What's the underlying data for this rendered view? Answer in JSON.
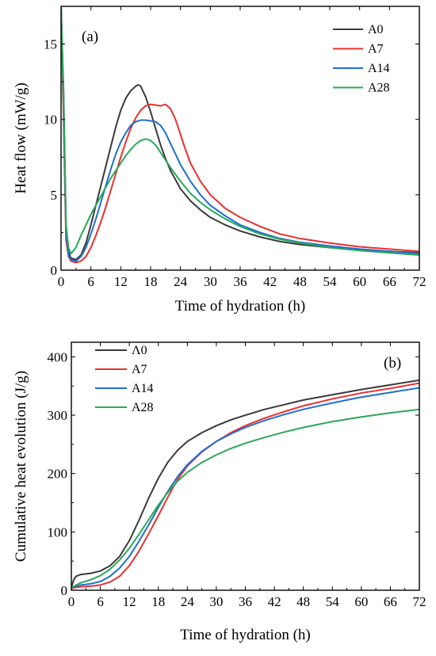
{
  "chart_data": [
    {
      "type": "line",
      "panel_label": "(a)",
      "xlabel": "Time of hydration (h)",
      "ylabel": "Heat flow (mW/g)",
      "xlim": [
        0,
        72
      ],
      "ylim": [
        0,
        17.5
      ],
      "xticks": [
        0,
        6,
        12,
        18,
        24,
        30,
        36,
        42,
        48,
        54,
        60,
        66,
        72
      ],
      "yticks": [
        0,
        5,
        10,
        15
      ],
      "legend_position": "top-right",
      "series": [
        {
          "name": "A0",
          "color": "#3a3a3a",
          "points": [
            [
              0,
              17.5
            ],
            [
              0.5,
              12
            ],
            [
              1,
              3
            ],
            [
              1.5,
              1.2
            ],
            [
              2,
              0.8
            ],
            [
              3,
              0.7
            ],
            [
              4,
              1.0
            ],
            [
              5,
              1.8
            ],
            [
              6,
              3.0
            ],
            [
              7,
              4.3
            ],
            [
              8,
              5.6
            ],
            [
              9,
              6.9
            ],
            [
              10,
              8.2
            ],
            [
              11,
              9.5
            ],
            [
              12,
              10.6
            ],
            [
              13,
              11.4
            ],
            [
              14,
              11.9
            ],
            [
              15,
              12.2
            ],
            [
              15.5,
              12.3
            ],
            [
              16,
              12.2
            ],
            [
              17,
              11.5
            ],
            [
              18,
              10.5
            ],
            [
              19,
              9.4
            ],
            [
              20,
              8.3
            ],
            [
              21,
              7.4
            ],
            [
              22,
              6.6
            ],
            [
              24,
              5.4
            ],
            [
              26,
              4.6
            ],
            [
              28,
              4.0
            ],
            [
              30,
              3.5
            ],
            [
              33,
              3.0
            ],
            [
              36,
              2.6
            ],
            [
              40,
              2.2
            ],
            [
              44,
              1.9
            ],
            [
              48,
              1.7
            ],
            [
              54,
              1.5
            ],
            [
              60,
              1.35
            ],
            [
              66,
              1.25
            ],
            [
              72,
              1.15
            ]
          ]
        },
        {
          "name": "A7",
          "color": "#e8312f",
          "points": [
            [
              0,
              17.5
            ],
            [
              0.5,
              10
            ],
            [
              1,
              2
            ],
            [
              1.5,
              0.9
            ],
            [
              2,
              0.6
            ],
            [
              3,
              0.5
            ],
            [
              4,
              0.6
            ],
            [
              5,
              0.9
            ],
            [
              6,
              1.5
            ],
            [
              7,
              2.3
            ],
            [
              8,
              3.2
            ],
            [
              9,
              4.2
            ],
            [
              10,
              5.3
            ],
            [
              11,
              6.4
            ],
            [
              12,
              7.5
            ],
            [
              13,
              8.5
            ],
            [
              14,
              9.4
            ],
            [
              15,
              10.1
            ],
            [
              16,
              10.6
            ],
            [
              17,
              10.9
            ],
            [
              18,
              11.0
            ],
            [
              19,
              10.95
            ],
            [
              20,
              10.9
            ],
            [
              21,
              11.0
            ],
            [
              22,
              10.7
            ],
            [
              23,
              10.0
            ],
            [
              24,
              9.0
            ],
            [
              25,
              8.0
            ],
            [
              26,
              7.1
            ],
            [
              28,
              5.9
            ],
            [
              30,
              5.0
            ],
            [
              33,
              4.1
            ],
            [
              36,
              3.5
            ],
            [
              40,
              2.9
            ],
            [
              44,
              2.4
            ],
            [
              48,
              2.1
            ],
            [
              54,
              1.8
            ],
            [
              60,
              1.55
            ],
            [
              66,
              1.4
            ],
            [
              72,
              1.25
            ]
          ]
        },
        {
          "name": "A14",
          "color": "#1f6fd1",
          "points": [
            [
              0,
              17.5
            ],
            [
              0.5,
              11
            ],
            [
              1,
              2.5
            ],
            [
              1.5,
              1.0
            ],
            [
              2,
              0.7
            ],
            [
              3,
              0.6
            ],
            [
              4,
              0.9
            ],
            [
              5,
              1.5
            ],
            [
              6,
              2.4
            ],
            [
              7,
              3.4
            ],
            [
              8,
              4.5
            ],
            [
              9,
              5.6
            ],
            [
              10,
              6.7
            ],
            [
              11,
              7.7
            ],
            [
              12,
              8.5
            ],
            [
              13,
              9.1
            ],
            [
              14,
              9.6
            ],
            [
              15,
              9.85
            ],
            [
              16,
              9.95
            ],
            [
              17,
              9.95
            ],
            [
              18,
              9.9
            ],
            [
              19,
              9.85
            ],
            [
              20,
              9.6
            ],
            [
              21,
              9.1
            ],
            [
              22,
              8.4
            ],
            [
              23,
              7.7
            ],
            [
              24,
              7.0
            ],
            [
              26,
              5.9
            ],
            [
              28,
              5.0
            ],
            [
              30,
              4.3
            ],
            [
              33,
              3.6
            ],
            [
              36,
              3.0
            ],
            [
              40,
              2.5
            ],
            [
              44,
              2.1
            ],
            [
              48,
              1.85
            ],
            [
              54,
              1.6
            ],
            [
              60,
              1.4
            ],
            [
              66,
              1.25
            ],
            [
              72,
              1.1
            ]
          ]
        },
        {
          "name": "A28",
          "color": "#2aa85a",
          "points": [
            [
              0,
              17.5
            ],
            [
              0.5,
              11.5
            ],
            [
              1,
              3
            ],
            [
              1.5,
              1.5
            ],
            [
              2,
              1.1
            ],
            [
              3,
              1.5
            ],
            [
              4,
              2.3
            ],
            [
              5,
              3.0
            ],
            [
              6,
              3.7
            ],
            [
              7,
              4.3
            ],
            [
              8,
              4.9
            ],
            [
              9,
              5.5
            ],
            [
              10,
              6.1
            ],
            [
              11,
              6.6
            ],
            [
              12,
              7.1
            ],
            [
              13,
              7.6
            ],
            [
              14,
              8.0
            ],
            [
              15,
              8.35
            ],
            [
              16,
              8.6
            ],
            [
              17,
              8.7
            ],
            [
              18,
              8.6
            ],
            [
              19,
              8.3
            ],
            [
              20,
              7.8
            ],
            [
              21,
              7.3
            ],
            [
              22,
              6.8
            ],
            [
              24,
              5.9
            ],
            [
              26,
              5.1
            ],
            [
              28,
              4.5
            ],
            [
              30,
              4.0
            ],
            [
              33,
              3.4
            ],
            [
              36,
              2.9
            ],
            [
              40,
              2.4
            ],
            [
              44,
              2.05
            ],
            [
              48,
              1.8
            ],
            [
              54,
              1.5
            ],
            [
              60,
              1.3
            ],
            [
              66,
              1.15
            ],
            [
              72,
              1.0
            ]
          ]
        }
      ]
    },
    {
      "type": "line",
      "panel_label": "(b)",
      "xlabel": "Time of hydration (h)",
      "ylabel": "Cumulative heat evolution (J/g)",
      "xlim": [
        0,
        72
      ],
      "ylim": [
        0,
        425
      ],
      "xticks": [
        0,
        6,
        12,
        18,
        24,
        30,
        36,
        42,
        48,
        54,
        60,
        66,
        72
      ],
      "yticks": [
        0,
        100,
        200,
        300,
        400
      ],
      "legend_position": "top-left",
      "series": [
        {
          "name": "Λ0",
          "color": "#3a3a3a",
          "points": [
            [
              0,
              5
            ],
            [
              0.5,
              18
            ],
            [
              1,
              24
            ],
            [
              2,
              27
            ],
            [
              4,
              29
            ],
            [
              6,
              33
            ],
            [
              8,
              42
            ],
            [
              10,
              58
            ],
            [
              12,
              85
            ],
            [
              14,
              120
            ],
            [
              16,
              158
            ],
            [
              18,
              192
            ],
            [
              20,
              220
            ],
            [
              22,
              240
            ],
            [
              24,
              255
            ],
            [
              27,
              270
            ],
            [
              30,
              282
            ],
            [
              33,
              292
            ],
            [
              36,
              300
            ],
            [
              40,
              310
            ],
            [
              44,
              318
            ],
            [
              48,
              326
            ],
            [
              54,
              335
            ],
            [
              60,
              344
            ],
            [
              66,
              352
            ],
            [
              72,
              360
            ]
          ]
        },
        {
          "name": "A7",
          "color": "#e8312f",
          "points": [
            [
              0,
              3
            ],
            [
              1,
              5
            ],
            [
              2,
              6
            ],
            [
              4,
              7
            ],
            [
              6,
              9
            ],
            [
              8,
              14
            ],
            [
              10,
              24
            ],
            [
              12,
              42
            ],
            [
              14,
              67
            ],
            [
              16,
              97
            ],
            [
              18,
              128
            ],
            [
              20,
              160
            ],
            [
              22,
              190
            ],
            [
              24,
              213
            ],
            [
              27,
              237
            ],
            [
              30,
              255
            ],
            [
              33,
              270
            ],
            [
              36,
              282
            ],
            [
              40,
              295
            ],
            [
              44,
              306
            ],
            [
              48,
              316
            ],
            [
              54,
              328
            ],
            [
              60,
              338
            ],
            [
              66,
              346
            ],
            [
              72,
              355
            ]
          ]
        },
        {
          "name": "A14",
          "color": "#1f6fd1",
          "points": [
            [
              0,
              4
            ],
            [
              1,
              7
            ],
            [
              2,
              9
            ],
            [
              4,
              11
            ],
            [
              6,
              15
            ],
            [
              8,
              24
            ],
            [
              10,
              38
            ],
            [
              12,
              58
            ],
            [
              14,
              84
            ],
            [
              16,
              112
            ],
            [
              18,
              142
            ],
            [
              20,
              170
            ],
            [
              22,
              195
            ],
            [
              24,
              215
            ],
            [
              27,
              238
            ],
            [
              30,
              255
            ],
            [
              33,
              268
            ],
            [
              36,
              279
            ],
            [
              40,
              291
            ],
            [
              44,
              301
            ],
            [
              48,
              310
            ],
            [
              54,
              321
            ],
            [
              60,
              331
            ],
            [
              66,
              339
            ],
            [
              72,
              347
            ]
          ]
        },
        {
          "name": "A28",
          "color": "#2aa85a",
          "points": [
            [
              0,
              4
            ],
            [
              1,
              9
            ],
            [
              2,
              13
            ],
            [
              4,
              18
            ],
            [
              6,
              25
            ],
            [
              8,
              36
            ],
            [
              10,
              52
            ],
            [
              12,
              72
            ],
            [
              14,
              96
            ],
            [
              16,
              121
            ],
            [
              18,
              146
            ],
            [
              20,
              168
            ],
            [
              22,
              187
            ],
            [
              24,
              202
            ],
            [
              27,
              219
            ],
            [
              30,
              232
            ],
            [
              33,
              243
            ],
            [
              36,
              252
            ],
            [
              40,
              262
            ],
            [
              44,
              271
            ],
            [
              48,
              279
            ],
            [
              54,
              289
            ],
            [
              60,
              297
            ],
            [
              66,
              304
            ],
            [
              72,
              310
            ]
          ]
        }
      ]
    }
  ]
}
